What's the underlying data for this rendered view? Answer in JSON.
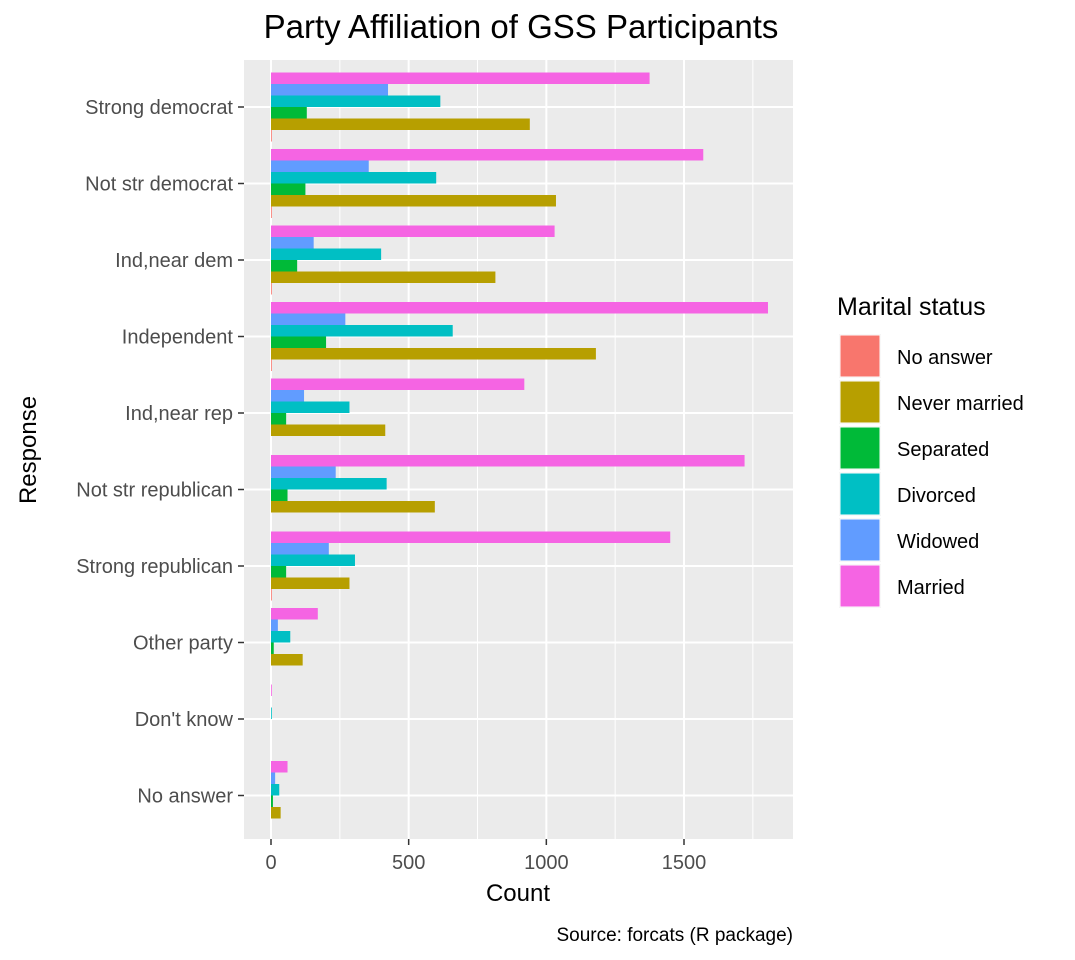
{
  "chart_data": {
    "type": "bar",
    "orientation": "horizontal",
    "title": "Party Affiliation of GSS Participants",
    "xlabel": "Count",
    "ylabel": "Response",
    "caption": "Source: forcats (R package)",
    "xlim": [
      0,
      1900
    ],
    "x_ticks": [
      0,
      500,
      1000,
      1500
    ],
    "x_tick_labels": [
      "0",
      "500",
      "1000",
      "1500"
    ],
    "grid": true,
    "legend": {
      "title": "Marital status",
      "position": "right"
    },
    "categories": [
      "Strong democrat",
      "Not str democrat",
      "Ind,near dem",
      "Independent",
      "Ind,near rep",
      "Not str republican",
      "Strong republican",
      "Other party",
      "Don't know",
      "No answer"
    ],
    "series": [
      {
        "name": "No answer",
        "color": "#F8766D",
        "values": [
          2,
          1,
          1,
          1,
          0,
          0,
          2,
          0,
          0,
          0
        ]
      },
      {
        "name": "Never married",
        "color": "#B79F00",
        "values": [
          940,
          1035,
          815,
          1180,
          415,
          595,
          285,
          115,
          0,
          35
        ]
      },
      {
        "name": "Separated",
        "color": "#00BA38",
        "values": [
          130,
          125,
          95,
          200,
          55,
          60,
          55,
          10,
          0,
          7
        ]
      },
      {
        "name": "Divorced",
        "color": "#00BFC4",
        "values": [
          615,
          600,
          400,
          660,
          285,
          420,
          305,
          70,
          1,
          30
        ]
      },
      {
        "name": "Widowed",
        "color": "#619CFF",
        "values": [
          425,
          355,
          155,
          270,
          120,
          235,
          210,
          25,
          0,
          15
        ]
      },
      {
        "name": "Married",
        "color": "#F564E3",
        "values": [
          1375,
          1570,
          1030,
          1805,
          920,
          1720,
          1450,
          170,
          1,
          60
        ]
      }
    ]
  }
}
